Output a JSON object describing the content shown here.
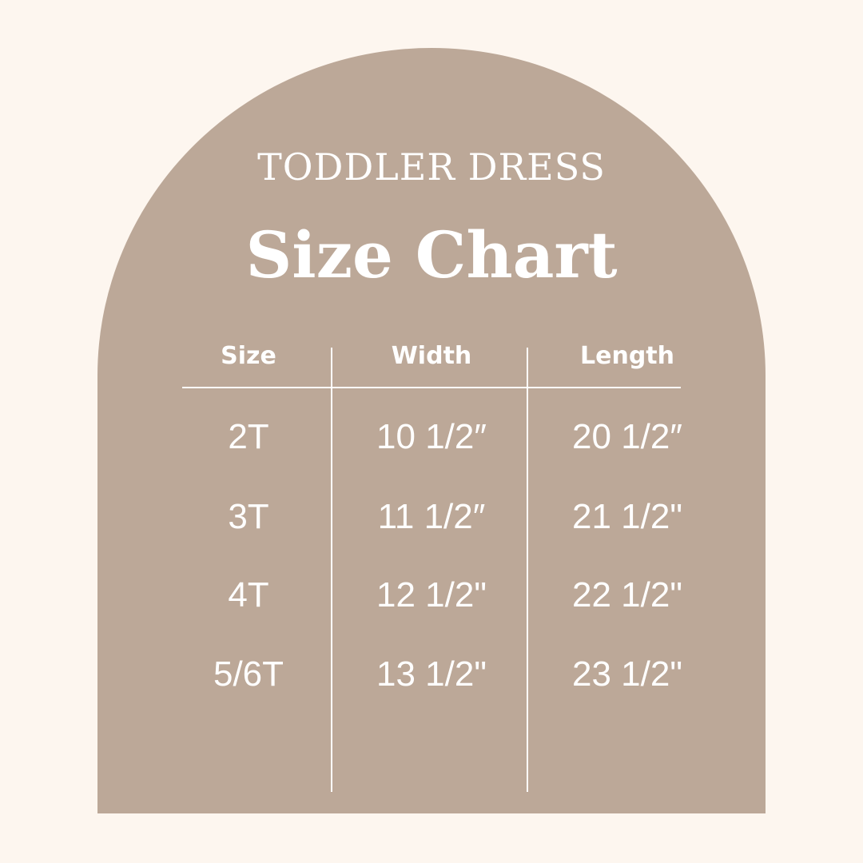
{
  "title": "TODDLER DRESS",
  "subtitle": "Size Chart",
  "colors": {
    "background": "#fdf6ef",
    "arch": "#bca898",
    "text": "#ffffff"
  },
  "table": {
    "headers": [
      "Size",
      "Width",
      "Length"
    ],
    "rows": [
      [
        "2T",
        "10 1/2″",
        "20 1/2″"
      ],
      [
        "3T",
        "11 1/2″",
        "21 1/2\""
      ],
      [
        "4T",
        "12 1/2\"",
        "22 1/2\""
      ],
      [
        "5/6T",
        "13 1/2\"",
        "23 1/2\""
      ]
    ]
  }
}
